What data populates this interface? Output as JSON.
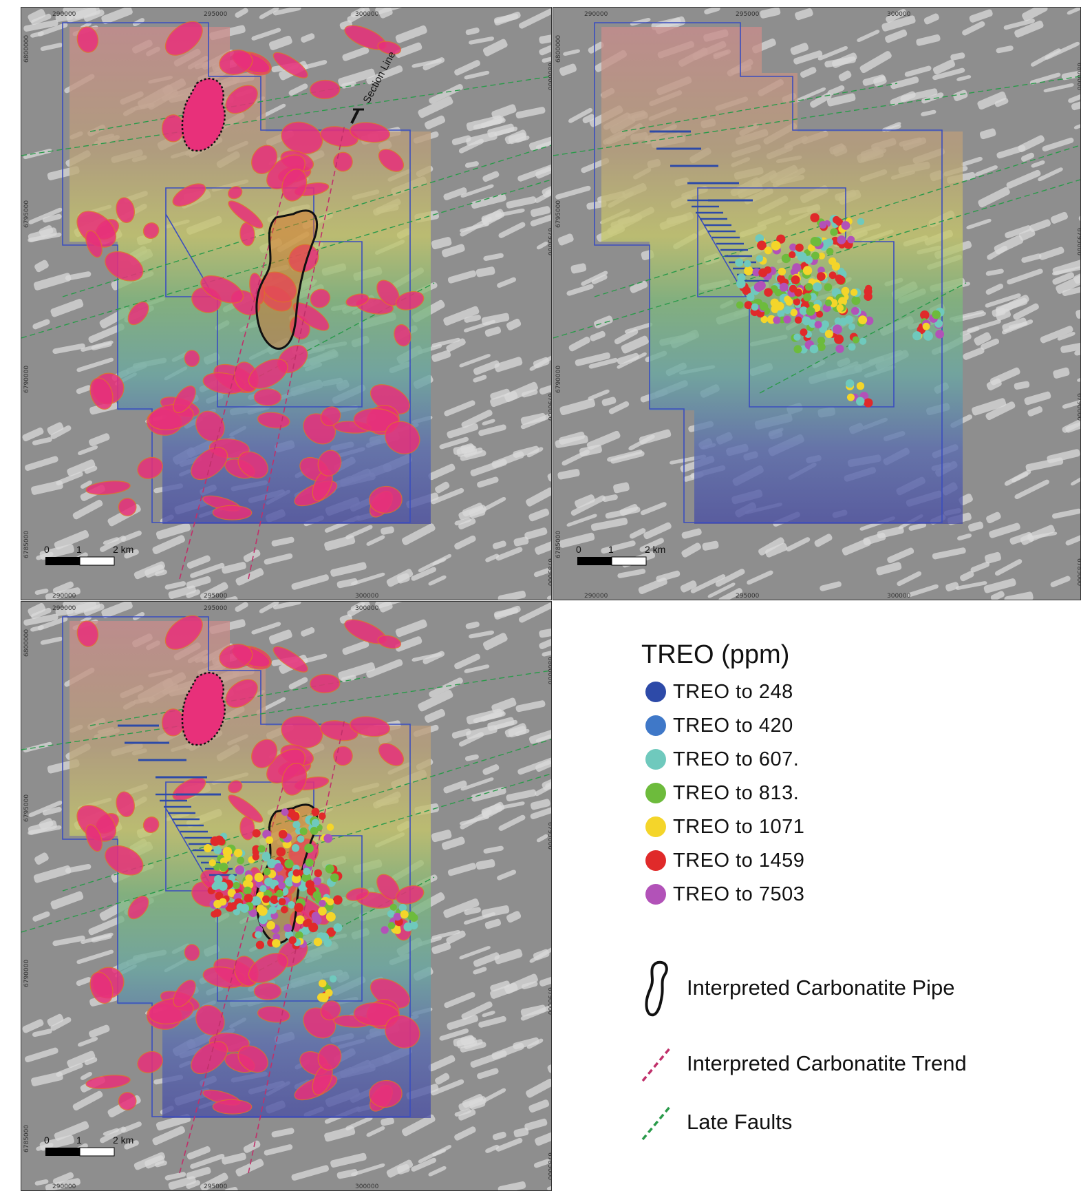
{
  "axis_ticks": {
    "x": [
      "290000",
      "295000",
      "300000"
    ],
    "y_left": [
      "6800000",
      "6795000",
      "6790000",
      "6785000"
    ],
    "y_right": [
      "6800000",
      "6795000",
      "6790000",
      "6785000"
    ]
  },
  "scale_bar": {
    "labels": [
      "0",
      "1",
      "2 km"
    ]
  },
  "section_line_label": "Section Line",
  "legend": {
    "title": "TREO (ppm)",
    "classes": [
      {
        "label": "TREO  to 248",
        "color": "#2d4aa8"
      },
      {
        "label": "TREO  to 420",
        "color": "#3f78c8"
      },
      {
        "label": "TREO  to 607.",
        "color": "#6fc9bd"
      },
      {
        "label": "TREO  to 813.",
        "color": "#6dbb3c"
      },
      {
        "label": "TREO  to 1071",
        "color": "#f4d52a"
      },
      {
        "label": "TREO  to 1459",
        "color": "#e02a2a"
      },
      {
        "label": "TREO  to 7503",
        "color": "#b252b8"
      }
    ],
    "symbols": [
      {
        "label": "Interpreted Carbonatite Pipe",
        "icon": "pipe-outline-icon"
      },
      {
        "label": "Interpreted Carbonatite Trend",
        "icon": "magenta-dashed-line-icon",
        "color": "#c0306a"
      },
      {
        "label": "Late Faults",
        "icon": "green-dashed-line-icon",
        "color": "#2a9a4a"
      }
    ]
  },
  "colors": {
    "anomaly": "#e8307a",
    "tenement": "#3a4dbf",
    "carbonatite_trend": "#c0306a",
    "late_faults": "#2a9a4a"
  }
}
